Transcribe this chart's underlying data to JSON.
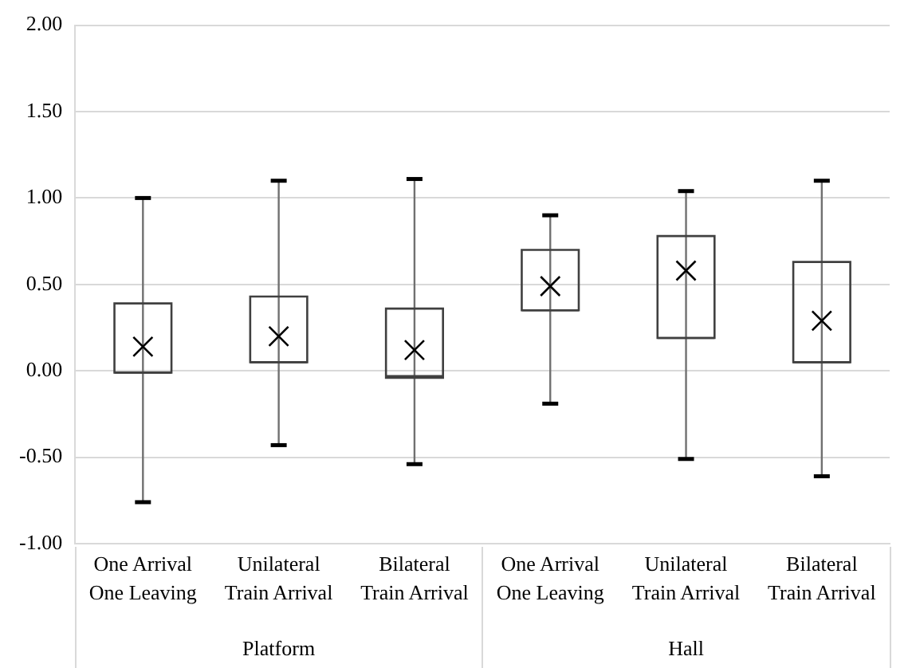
{
  "chart_data": {
    "type": "box",
    "categories": [
      "One Arrival One Leaving",
      "Unilateral Train Arrival",
      "Bilateral Train Arrival",
      "One Arrival One Leaving",
      "Unilateral Train Arrival",
      "Bilateral Train Arrival"
    ],
    "boxes": [
      {
        "low": -0.76,
        "q1": -0.01,
        "median": -0.01,
        "q3": 0.39,
        "high": 1.0,
        "mean": 0.14
      },
      {
        "low": -0.43,
        "q1": 0.05,
        "median": 0.05,
        "q3": 0.43,
        "high": 1.1,
        "mean": 0.2
      },
      {
        "low": -0.54,
        "q1": -0.04,
        "median": -0.03,
        "q3": 0.36,
        "high": 1.11,
        "mean": 0.12
      },
      {
        "low": -0.19,
        "q1": 0.35,
        "median": 0.35,
        "q3": 0.7,
        "high": 0.9,
        "mean": 0.49
      },
      {
        "low": -0.51,
        "q1": 0.19,
        "median": 0.19,
        "q3": 0.78,
        "high": 1.04,
        "mean": 0.58
      },
      {
        "low": -0.61,
        "q1": 0.05,
        "median": 0.05,
        "q3": 0.63,
        "high": 1.1,
        "mean": 0.29
      }
    ],
    "color": "#404040",
    "ylim": [
      -1,
      2
    ],
    "yticks": [
      {
        "value": -1,
        "label": "-1.00"
      },
      {
        "value": -0.5,
        "label": "-0.50"
      },
      {
        "value": 0,
        "label": "0.00"
      },
      {
        "value": 0.5,
        "label": "0.50"
      },
      {
        "value": 1,
        "label": "1.00"
      },
      {
        "value": 1.5,
        "label": "1.50"
      },
      {
        "value": 2,
        "label": "2.00"
      }
    ],
    "grid": "y",
    "legend": false,
    "annotations": [
      "Platform",
      "Hall"
    ]
  }
}
